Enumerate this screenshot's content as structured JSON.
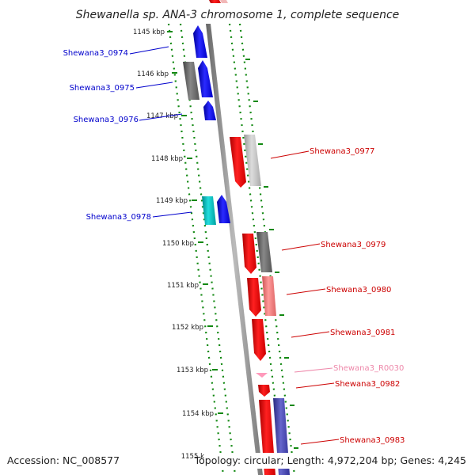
{
  "title": "Shewanella sp. ANA-3 chromosome 1, complete sequence",
  "accession_text": "Accession: NC_008577",
  "summary_text": "Topology: circular; Length: 4,972,204 bp; Genes: 4,245",
  "scale_labels": [
    "1145 kbp",
    "1146 kbp",
    "1147 kbp",
    "1148 kbp",
    "1149 kbp",
    "1150 kbp",
    "1151 kbp",
    "1152 kbp",
    "1153 kbp",
    "1154 kbp",
    "1155 k"
  ],
  "gene_labels": [
    {
      "text": "Shewana3_0974",
      "color": "#0000cc"
    },
    {
      "text": "Shewana3_0975",
      "color": "#0000cc"
    },
    {
      "text": "Shewana3_0976",
      "color": "#0000cc"
    },
    {
      "text": "Shewana3_0977",
      "color": "#cc0000"
    },
    {
      "text": "Shewana3_0978",
      "color": "#0000cc"
    },
    {
      "text": "Shewana3_0979",
      "color": "#cc0000"
    },
    {
      "text": "Shewana3_0980",
      "color": "#cc0000"
    },
    {
      "text": "Shewana3_0981",
      "color": "#cc0000"
    },
    {
      "text": "Shewana3_R0030",
      "color": "#ee88aa"
    },
    {
      "text": "Shewana3_0982",
      "color": "#cc0000"
    },
    {
      "text": "Shewana3_0983",
      "color": "#cc0000"
    }
  ],
  "colors": {
    "forward": "#0000ee",
    "reverse": "#ee0000",
    "cog_grey": "#666666",
    "cog_light_grey": "#bbbbbb",
    "cog_cyan": "#00bbbb",
    "cog_pink": "#ee7777",
    "cog_purple": "#4444aa",
    "rna_pink": "#ff99bb",
    "backbone": "#888888",
    "ticks": "#118811"
  }
}
